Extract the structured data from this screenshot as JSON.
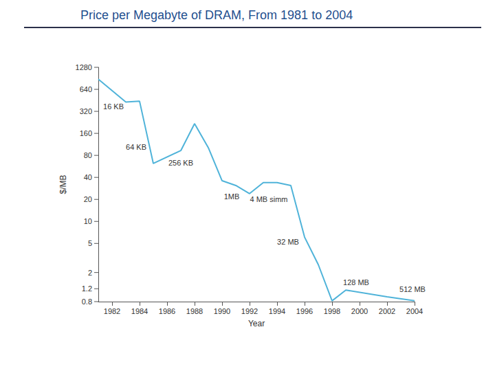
{
  "chart_data": {
    "type": "line",
    "title": "Price per Megabyte of DRAM, From 1981 to 2004",
    "x_label": "Year",
    "y_label": "$/MB",
    "x": [
      1981,
      1983,
      1984,
      1985,
      1987,
      1988,
      1989,
      1990,
      1991,
      1992,
      1993,
      1994,
      1995,
      1996,
      1997,
      1998,
      1999,
      2002,
      2004
    ],
    "values": [
      880,
      430,
      440,
      62,
      93,
      217,
      102,
      36,
      31,
      24,
      34,
      34,
      31,
      6.1,
      2.56,
      0.82,
      1.15,
      0.93,
      0.82
    ],
    "color": "#4fb3d9",
    "log": "y",
    "grid": false,
    "xlim": [
      1981,
      2004
    ],
    "xticks": [
      1982,
      1984,
      1986,
      1988,
      1990,
      1992,
      1994,
      1996,
      1998,
      2000,
      2002,
      2004
    ],
    "ylim": [
      0.8,
      1280
    ],
    "yticks": [
      0.8,
      1.2,
      2,
      5,
      10,
      20,
      40,
      80,
      160,
      320,
      640,
      1280
    ],
    "annotations": [
      {
        "text": "16 KB",
        "x": 1983,
        "y": 430
      },
      {
        "text": "64 KB",
        "x": 1985,
        "y": 62
      },
      {
        "text": "256 KB",
        "x": 1987,
        "y": 93
      },
      {
        "text": "1MB",
        "x": 1992,
        "y": 24
      },
      {
        "text": "4 MB simm",
        "x": 1993,
        "y": 34
      },
      {
        "text": "32 MB",
        "x": 1996,
        "y": 6.1
      },
      {
        "text": "128 MB",
        "x": 1999,
        "y": 1.15
      },
      {
        "text": "512 MB",
        "x": 2004,
        "y": 0.82
      }
    ]
  }
}
